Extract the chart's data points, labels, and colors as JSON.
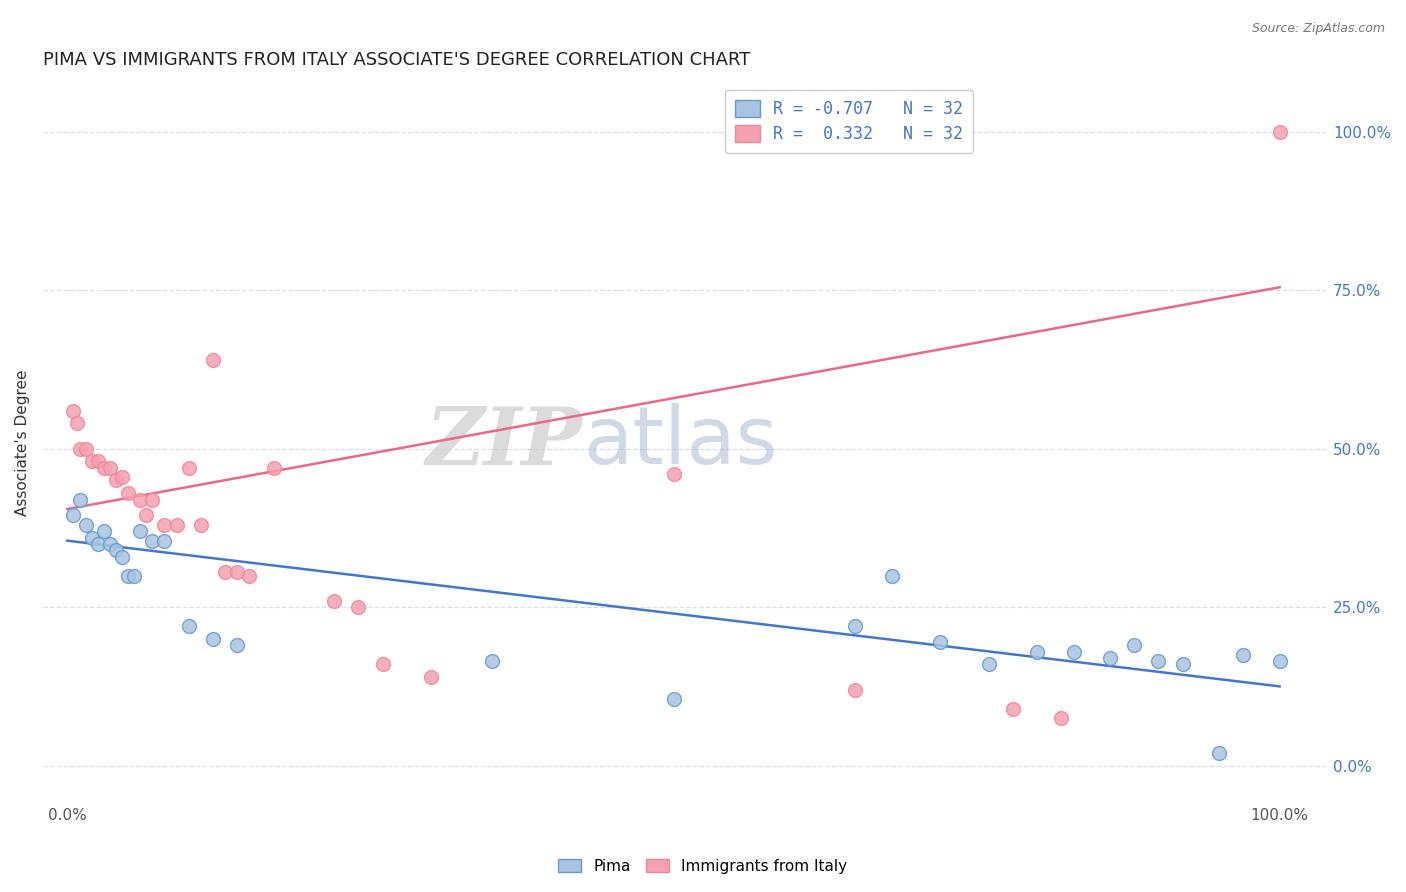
{
  "title": "PIMA VS IMMIGRANTS FROM ITALY ASSOCIATE'S DEGREE CORRELATION CHART",
  "source": "Source: ZipAtlas.com",
  "ylabel": "Associate's Degree",
  "watermark_zip": "ZIP",
  "watermark_atlas": "atlas",
  "legend_label1": "Pima",
  "legend_label2": "Immigrants from Italy",
  "color_blue_fill": "#A8C4E0",
  "color_pink_fill": "#F4A0B0",
  "color_blue_edge": "#6699CC",
  "color_pink_edge": "#EE8899",
  "color_blue_line": "#4477CC",
  "color_pink_line": "#EE6688",
  "color_axis_label": "#4477CC",
  "pima_x": [
    0.005,
    0.01,
    0.015,
    0.02,
    0.025,
    0.03,
    0.035,
    0.04,
    0.045,
    0.05,
    0.055,
    0.06,
    0.07,
    0.08,
    0.1,
    0.12,
    0.14,
    0.35,
    0.5,
    0.65,
    0.68,
    0.72,
    0.76,
    0.8,
    0.83,
    0.86,
    0.88,
    0.9,
    0.92,
    0.95,
    0.97,
    1.0
  ],
  "pima_y": [
    0.395,
    0.42,
    0.38,
    0.36,
    0.35,
    0.37,
    0.35,
    0.34,
    0.33,
    0.3,
    0.3,
    0.37,
    0.355,
    0.355,
    0.22,
    0.2,
    0.19,
    0.165,
    0.105,
    0.22,
    0.3,
    0.195,
    0.16,
    0.18,
    0.18,
    0.17,
    0.19,
    0.165,
    0.16,
    0.02,
    0.175,
    0.165
  ],
  "italy_x": [
    0.005,
    0.008,
    0.01,
    0.015,
    0.02,
    0.025,
    0.03,
    0.035,
    0.04,
    0.045,
    0.05,
    0.06,
    0.065,
    0.07,
    0.08,
    0.09,
    0.1,
    0.11,
    0.12,
    0.13,
    0.14,
    0.15,
    0.17,
    0.22,
    0.24,
    0.26,
    0.3,
    0.5,
    0.65,
    0.78,
    0.82,
    1.0
  ],
  "italy_y": [
    0.56,
    0.54,
    0.5,
    0.5,
    0.48,
    0.48,
    0.47,
    0.47,
    0.45,
    0.455,
    0.43,
    0.42,
    0.395,
    0.42,
    0.38,
    0.38,
    0.47,
    0.38,
    0.64,
    0.305,
    0.305,
    0.3,
    0.47,
    0.26,
    0.25,
    0.16,
    0.14,
    0.46,
    0.12,
    0.09,
    0.075,
    1.0
  ],
  "blue_line_x": [
    0.0,
    1.0
  ],
  "blue_line_y": [
    0.355,
    0.125
  ],
  "pink_line_x": [
    0.0,
    1.0
  ],
  "pink_line_y": [
    0.405,
    0.755
  ],
  "xlim": [
    -0.02,
    1.04
  ],
  "ylim": [
    -0.06,
    1.08
  ],
  "yticks": [
    0.0,
    0.25,
    0.5,
    0.75,
    1.0
  ],
  "ytick_labels": [
    "0.0%",
    "25.0%",
    "50.0%",
    "75.0%",
    "100.0%"
  ],
  "xticks": [
    0.0,
    1.0
  ],
  "xtick_labels": [
    "0.0%",
    "100.0%"
  ],
  "background_color": "#FFFFFF",
  "grid_color": "#DDDDEE",
  "title_fontsize": 13,
  "axis_fontsize": 11,
  "tick_fontsize": 11,
  "marker_size": 10,
  "legend_r1": "R = -0.707",
  "legend_n1": "N = 32",
  "legend_r2": "R =  0.332",
  "legend_n2": "N = 32"
}
